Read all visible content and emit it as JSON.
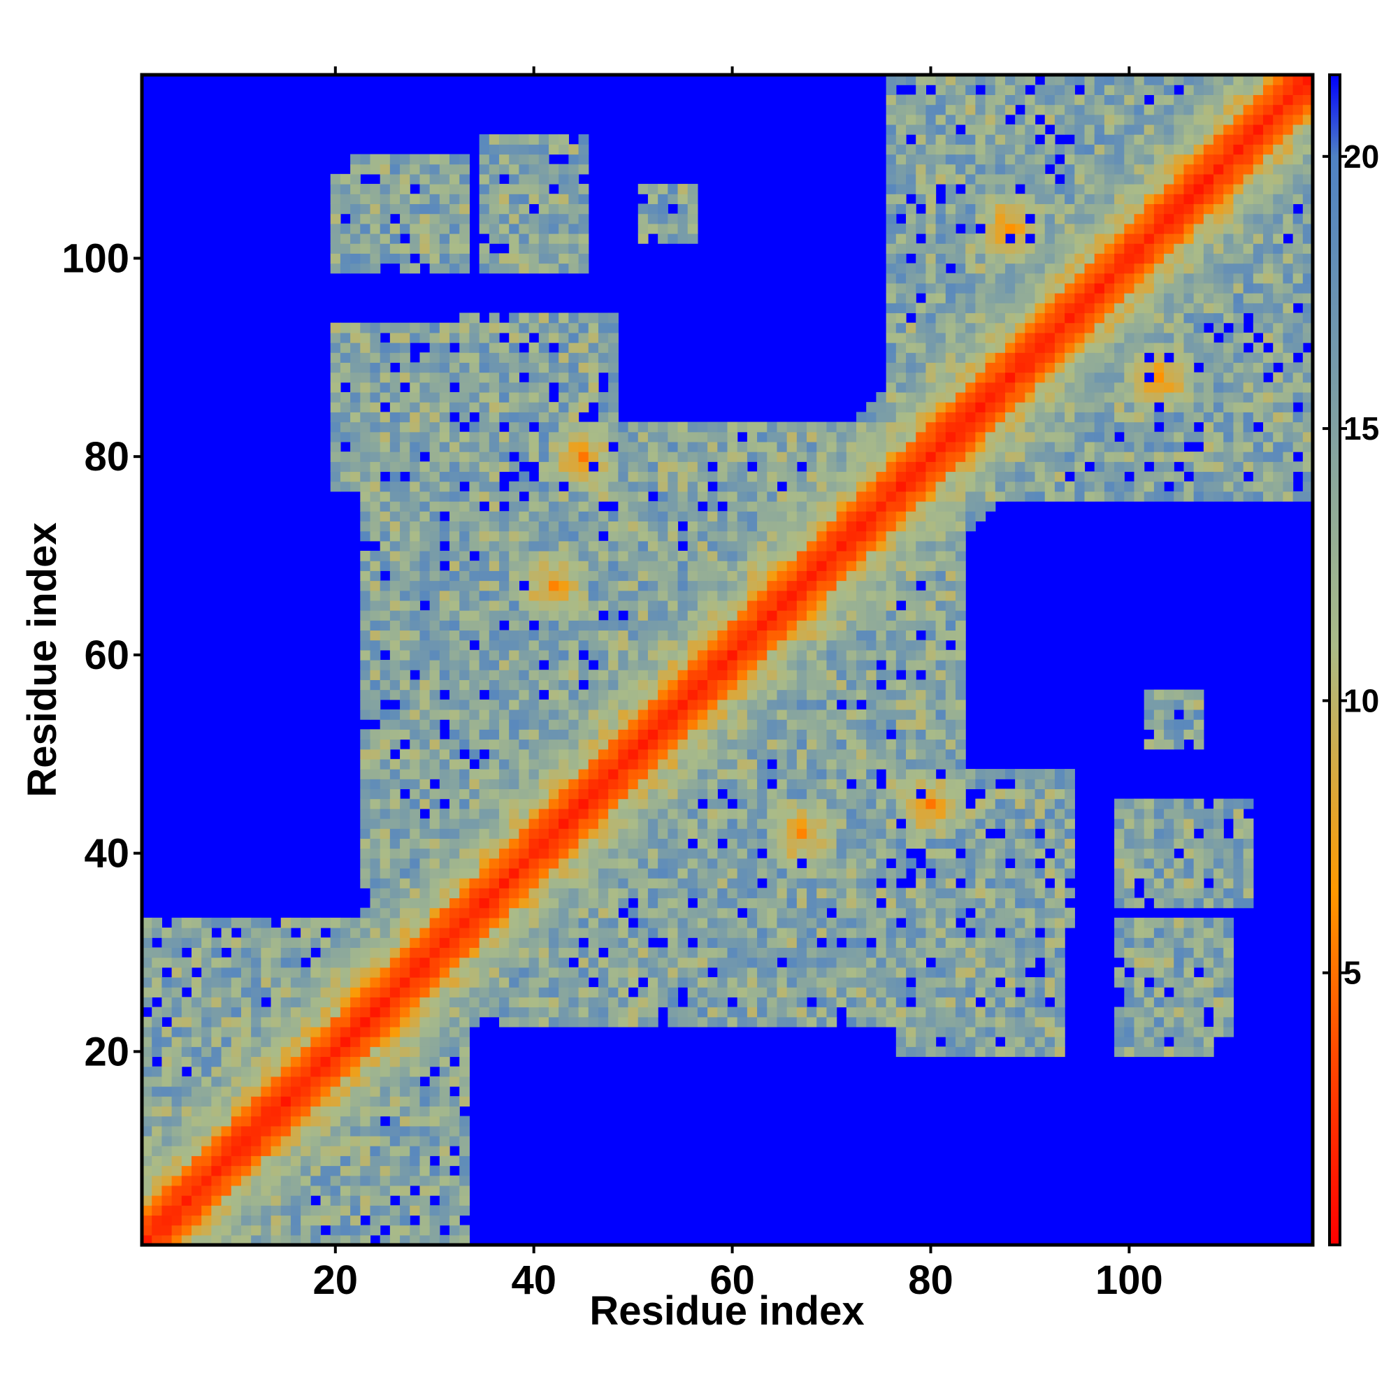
{
  "chart_data": {
    "type": "heatmap",
    "title": "",
    "xlabel": "Residue index",
    "ylabel": "Residue index",
    "n_residues": 118,
    "x_ticks": [
      20,
      40,
      60,
      80,
      100
    ],
    "y_ticks": [
      20,
      40,
      60,
      80,
      100
    ],
    "x_tick_labels": [
      "20",
      "40",
      "60",
      "80",
      "100"
    ],
    "y_tick_labels": [
      "20",
      "40",
      "60",
      "80",
      "100"
    ],
    "xlim": [
      1,
      118
    ],
    "ylim": [
      1,
      118
    ],
    "colorbar": {
      "range": [
        0,
        21.5
      ],
      "ticks": [
        5,
        10,
        15,
        20
      ],
      "tick_labels": [
        "5",
        "10",
        "15",
        "20"
      ],
      "colors": [
        "#ff0000",
        "#ff4a00",
        "#ff9900",
        "#aabb88",
        "#4f82c4",
        "#0000ff"
      ],
      "color_stops": [
        0,
        3.5,
        6.5,
        11,
        20,
        21.5
      ]
    },
    "cutoff_color": "#0000ff",
    "seed": 7,
    "diagonal_band": {
      "core": 3,
      "width": 11
    },
    "regions": [
      {
        "x": [
          1,
          33
        ],
        "y": [
          1,
          33
        ]
      },
      {
        "x": [
          76,
          118
        ],
        "y": [
          76,
          118
        ]
      },
      {
        "x": [
          23,
          82
        ],
        "y": [
          23,
          83
        ]
      },
      {
        "x": [
          20,
          35
        ],
        "y": [
          78,
          93
        ]
      },
      {
        "x": [
          33,
          48
        ],
        "y": [
          77,
          94
        ]
      },
      {
        "x": [
          20,
          32
        ],
        "y": [
          99,
          108
        ]
      },
      {
        "x": [
          35,
          45
        ],
        "y": [
          99,
          112
        ]
      },
      {
        "x": [
          51,
          56
        ],
        "y": [
          102,
          107
        ]
      },
      {
        "x": [
          90,
          108
        ],
        "y": [
          76,
          93
        ]
      },
      {
        "x": [
          77,
          93
        ],
        "y": [
          20,
          40
        ]
      },
      {
        "x": [
          99,
          112
        ],
        "y": [
          37,
          45
        ]
      },
      {
        "x": [
          99,
          110
        ],
        "y": [
          22,
          33
        ]
      },
      {
        "x": [
          102,
          106
        ],
        "y": [
          51,
          56
        ]
      }
    ],
    "hotspots": [
      {
        "x": 42,
        "y": 67
      },
      {
        "x": 63,
        "y": 42
      },
      {
        "x": 35,
        "y": 30
      },
      {
        "x": 52,
        "y": 45
      },
      {
        "x": 45,
        "y": 80
      },
      {
        "x": 80,
        "y": 45
      },
      {
        "x": 88,
        "y": 103
      },
      {
        "x": 103,
        "y": 88
      },
      {
        "x": 64,
        "y": 67
      },
      {
        "x": 67,
        "y": 64
      },
      {
        "x": 26,
        "y": 22
      },
      {
        "x": 22,
        "y": 26
      }
    ]
  }
}
